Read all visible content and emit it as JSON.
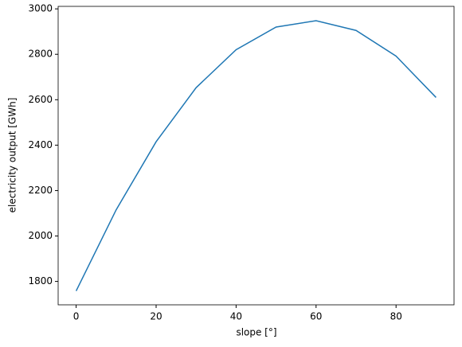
{
  "chart_data": {
    "type": "line",
    "x_label": "slope [°]",
    "y_label": "electricity output [GWh]",
    "x": [
      0,
      10,
      20,
      30,
      40,
      50,
      60,
      70,
      80,
      90
    ],
    "series": [
      {
        "color": "#1f77b4",
        "values": [
          1758,
          2115,
          2415,
          2653,
          2820,
          2920,
          2948,
          2905,
          2792,
          2610
        ]
      }
    ],
    "xlim": [
      -4.5,
      94.5
    ],
    "xticks": [
      0,
      20,
      40,
      60,
      80
    ],
    "ylim": [
      1697,
      3011
    ],
    "yticks": [
      1800,
      2000,
      2200,
      2400,
      2600,
      2800,
      3000
    ]
  }
}
